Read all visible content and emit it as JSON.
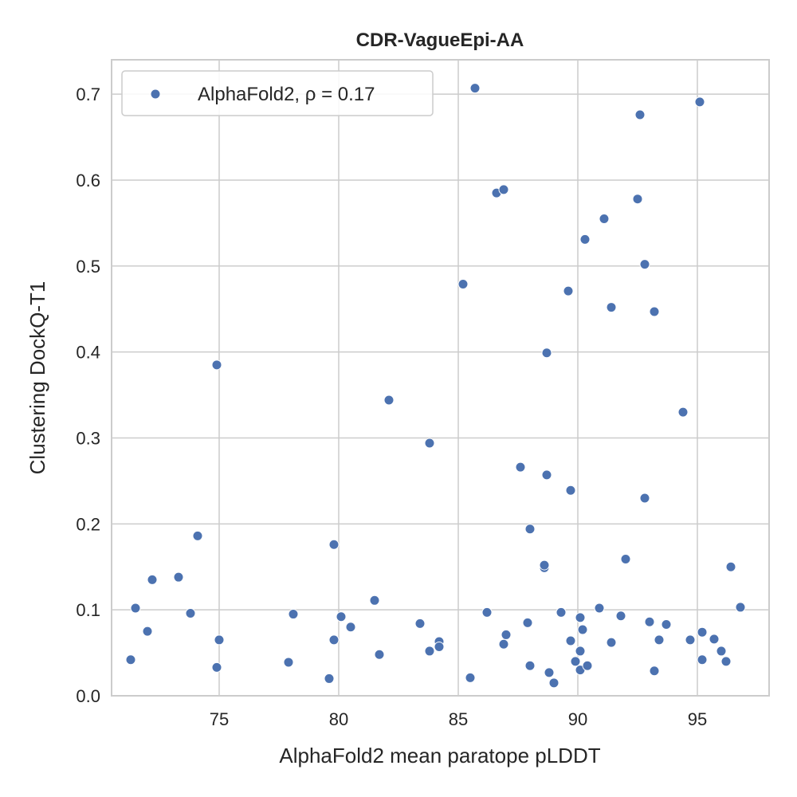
{
  "chart_data": {
    "type": "scatter",
    "title": "CDR-VagueEpi-AA",
    "xlabel": "AlphaFold2 mean paratope pLDDT",
    "ylabel": "Clustering DockQ-T1",
    "xlim": [
      70.5,
      98
    ],
    "ylim": [
      0,
      0.74
    ],
    "xticks": [
      75,
      80,
      85,
      90,
      95
    ],
    "yticks": [
      0.0,
      0.1,
      0.2,
      0.3,
      0.4,
      0.5,
      0.6,
      0.7
    ],
    "xtick_labels": [
      "75",
      "80",
      "85",
      "90",
      "95"
    ],
    "ytick_labels": [
      "0.0",
      "0.1",
      "0.2",
      "0.3",
      "0.4",
      "0.5",
      "0.6",
      "0.7"
    ],
    "grid": true,
    "legend_position": "top-left",
    "colors": {
      "marker": "#4c72b0",
      "grid": "#cccccc",
      "spine": "#cccccc",
      "text": "#262626"
    },
    "series": [
      {
        "name": "AlphaFold2, ρ = 0.17",
        "points": [
          [
            71.3,
            0.042
          ],
          [
            71.5,
            0.102
          ],
          [
            72.0,
            0.075
          ],
          [
            72.2,
            0.135
          ],
          [
            73.3,
            0.138
          ],
          [
            73.8,
            0.096
          ],
          [
            74.1,
            0.186
          ],
          [
            74.9,
            0.385
          ],
          [
            74.9,
            0.033
          ],
          [
            75.0,
            0.065
          ],
          [
            77.9,
            0.039
          ],
          [
            78.1,
            0.095
          ],
          [
            79.6,
            0.02
          ],
          [
            79.8,
            0.176
          ],
          [
            79.8,
            0.065
          ],
          [
            80.1,
            0.092
          ],
          [
            80.5,
            0.08
          ],
          [
            81.5,
            0.111
          ],
          [
            81.7,
            0.048
          ],
          [
            82.1,
            0.344
          ],
          [
            83.4,
            0.084
          ],
          [
            83.8,
            0.052
          ],
          [
            83.8,
            0.294
          ],
          [
            84.2,
            0.063
          ],
          [
            84.2,
            0.057
          ],
          [
            85.2,
            0.479
          ],
          [
            85.5,
            0.021
          ],
          [
            85.7,
            0.707
          ],
          [
            86.2,
            0.097
          ],
          [
            86.6,
            0.585
          ],
          [
            86.9,
            0.589
          ],
          [
            86.9,
            0.06
          ],
          [
            87.0,
            0.071
          ],
          [
            87.6,
            0.266
          ],
          [
            87.9,
            0.085
          ],
          [
            88.0,
            0.194
          ],
          [
            88.0,
            0.035
          ],
          [
            88.6,
            0.149
          ],
          [
            88.6,
            0.152
          ],
          [
            88.7,
            0.257
          ],
          [
            88.7,
            0.399
          ],
          [
            88.8,
            0.027
          ],
          [
            89.0,
            0.015
          ],
          [
            89.3,
            0.097
          ],
          [
            89.6,
            0.471
          ],
          [
            89.7,
            0.239
          ],
          [
            89.7,
            0.064
          ],
          [
            89.9,
            0.04
          ],
          [
            90.1,
            0.091
          ],
          [
            90.1,
            0.052
          ],
          [
            90.1,
            0.03
          ],
          [
            90.2,
            0.077
          ],
          [
            90.3,
            0.531
          ],
          [
            90.4,
            0.035
          ],
          [
            90.9,
            0.102
          ],
          [
            91.1,
            0.555
          ],
          [
            91.4,
            0.062
          ],
          [
            91.4,
            0.452
          ],
          [
            91.8,
            0.093
          ],
          [
            92.0,
            0.159
          ],
          [
            92.5,
            0.578
          ],
          [
            92.6,
            0.676
          ],
          [
            92.8,
            0.23
          ],
          [
            92.8,
            0.502
          ],
          [
            93.0,
            0.086
          ],
          [
            93.2,
            0.447
          ],
          [
            93.2,
            0.029
          ],
          [
            93.4,
            0.065
          ],
          [
            93.7,
            0.083
          ],
          [
            94.4,
            0.33
          ],
          [
            94.7,
            0.065
          ],
          [
            95.1,
            0.691
          ],
          [
            95.2,
            0.074
          ],
          [
            95.2,
            0.042
          ],
          [
            95.7,
            0.066
          ],
          [
            96.0,
            0.052
          ],
          [
            96.2,
            0.04
          ],
          [
            96.4,
            0.15
          ],
          [
            96.8,
            0.103
          ]
        ]
      }
    ]
  }
}
